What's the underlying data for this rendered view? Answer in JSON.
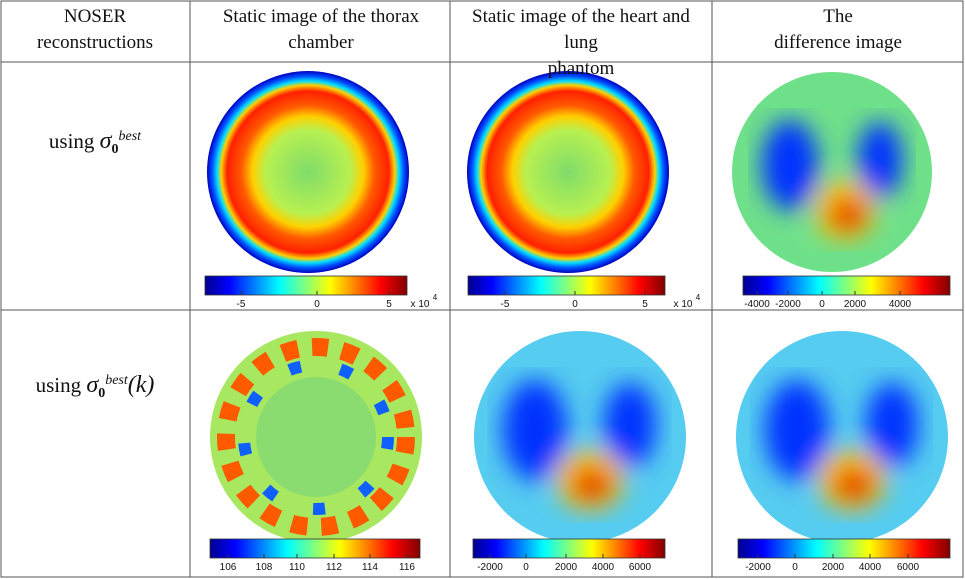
{
  "table": {
    "header": [
      "NOSER reconstructions",
      "Static image of the thorax chamber",
      "Static image of the heart and lung phantom",
      "The difference image"
    ],
    "rows": [
      {
        "label": {
          "prefix": "using",
          "symbol": "σ",
          "subscript": "0",
          "superscript": "best"
        },
        "colorbars": [
          {
            "ticks": [
              "-5",
              "0",
              "5"
            ],
            "multiplier": "x 10",
            "exponent": "4"
          },
          {
            "ticks": [
              "-5",
              "0",
              "5"
            ],
            "multiplier": "x 10",
            "exponent": "4"
          },
          {
            "ticks": [
              "-4000",
              "-2000",
              "0",
              "2000",
              "4000"
            ]
          }
        ]
      },
      {
        "label": {
          "prefix": "using",
          "symbol": "σ",
          "subscript": "0",
          "superscript": "best",
          "suffix": "(k)"
        },
        "colorbars": [
          {
            "ticks": [
              "106",
              "108",
              "110",
              "112",
              "114",
              "116"
            ]
          },
          {
            "ticks": [
              "-2000",
              "0",
              "2000",
              "4000",
              "6000"
            ]
          },
          {
            "ticks": [
              "-2000",
              "0",
              "2000",
              "4000",
              "6000"
            ]
          }
        ]
      }
    ]
  }
}
